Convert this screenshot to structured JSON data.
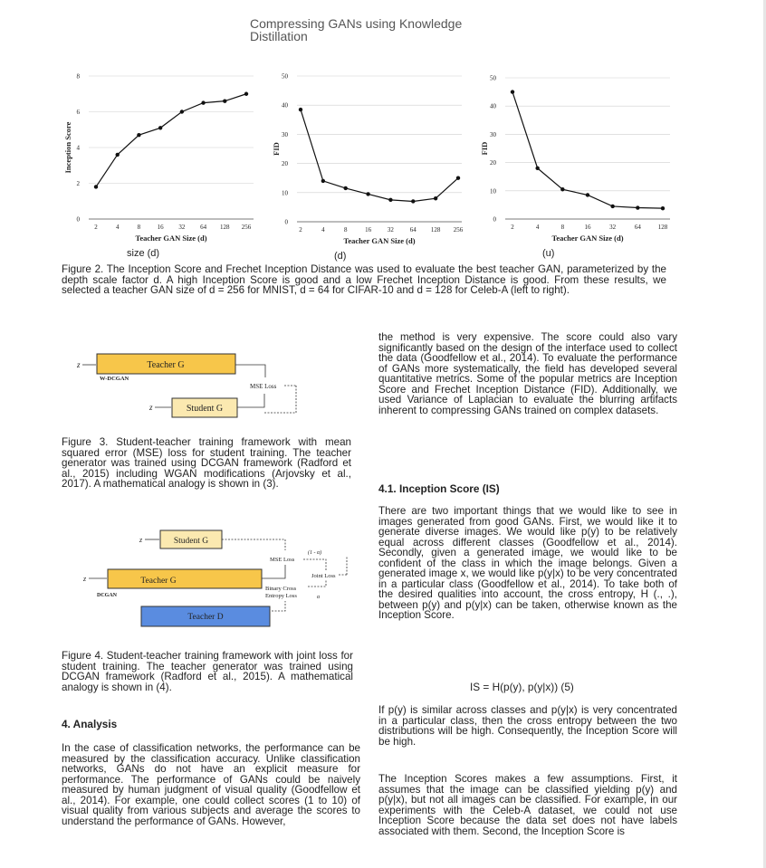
{
  "title": "Compressing GANs using Knowledge Distillation",
  "charts": {
    "sublabel_cut_left": "size (d)",
    "sublabel_middle": "(d)",
    "sublabel_cut_right": "(u)"
  },
  "chart_data": [
    {
      "type": "line",
      "x": [
        2,
        4,
        8,
        16,
        32,
        64,
        128,
        256
      ],
      "values": [
        1.8,
        3.6,
        4.7,
        5.1,
        6.0,
        6.5,
        6.6,
        7.0
      ],
      "xlabel": "Teacher GAN Size (d)",
      "ylabel": "Inception Score",
      "ylim": [
        0,
        8
      ],
      "yticks": [
        0,
        2,
        4,
        6,
        8
      ],
      "xticks": [
        "2",
        "4",
        "8",
        "16",
        "32",
        "64",
        "128",
        "256"
      ],
      "x_scale": "log2",
      "grid": true
    },
    {
      "type": "line",
      "x": [
        2,
        4,
        8,
        16,
        32,
        64,
        128,
        256
      ],
      "values": [
        38.5,
        14.0,
        11.5,
        9.5,
        7.5,
        7.0,
        8.0,
        15.0
      ],
      "xlabel": "Teacher GAN Size (d)",
      "ylabel": "FID",
      "ylim": [
        0,
        50
      ],
      "yticks": [
        0,
        10,
        20,
        30,
        40,
        50
      ],
      "xticks": [
        "2",
        "4",
        "8",
        "16",
        "32",
        "64",
        "128",
        "256"
      ],
      "x_scale": "log2",
      "grid": true
    },
    {
      "type": "line",
      "x": [
        2,
        4,
        8,
        16,
        32,
        64,
        128
      ],
      "values": [
        45.0,
        18.0,
        10.5,
        8.5,
        4.5,
        4.0,
        3.8
      ],
      "xlabel": "Teacher GAN Size (d)",
      "ylabel": "FID",
      "ylim": [
        0,
        50
      ],
      "yticks": [
        0,
        10,
        20,
        30,
        40,
        50
      ],
      "xticks": [
        "2",
        "4",
        "8",
        "16",
        "32",
        "64",
        "128"
      ],
      "x_scale": "log2",
      "grid": true
    }
  ],
  "figure2_caption": "Figure 2. The Inception Score and Frechet Inception Distance was used to evaluate the best teacher GAN, parameterized by the depth scale factor d. A high Inception Score is good and a low Frechet Inception Distance is good. From these results, we selected a teacher GAN size of d = 256 for MNIST, d = 64 for CIFAR-10 and d = 128 for Celeb-A (left to right).",
  "figure3": {
    "z_label": "z",
    "teacher_label": "Teacher G",
    "teacher_sublabel": "W-DCGAN",
    "student_label": "Student G",
    "loss_label": "MSE Loss",
    "caption": "Figure 3. Student-teacher training framework with mean squared error (MSE) loss for student training. The teacher generator was trained using DCGAN framework (Radford et al., 2015) including WGAN modifications (Arjovsky et al., 2017). A mathematical analogy is shown in (3)."
  },
  "figure4": {
    "z_label": "z",
    "student_label": "Student G",
    "teacher_g_label": "Teacher G",
    "teacher_g_sublabel": "DCGAN",
    "teacher_d_label": "Teacher D",
    "mse_label": "MSE Loss",
    "one_minus_alpha": "(1 - α)",
    "joint_loss_label": "Joint Loss",
    "bce_label_line1": "Binary Cross",
    "bce_label_line2": "Entropy Loss",
    "alpha": "α",
    "caption": "Figure 4. Student-teacher training framework with joint loss for student training. The teacher generator was trained using DCGAN framework (Radford et al., 2015). A mathematical analogy is shown in (4)."
  },
  "left_column": {
    "section_heading": "4. Analysis",
    "paragraph": "In the case of classification networks, the performance can be measured by the classification accuracy. Unlike classification networks, GANs do not have an explicit measure for performance. The performance of GANs could be naively measured by human judgment of visual quality (Goodfellow et al., 2014). For example, one could collect scores (1 to 10) of visual quality from various subjects and average the scores to understand the performance of GANs. However,"
  },
  "right_column": {
    "paragraph1": "the method is very expensive. The score could also vary significantly based on the design of the interface used to collect the data (Goodfellow et al., 2014). To evaluate the performance of GANs more systematically, the field has developed several quantitative metrics. Some of the popular metrics are Inception Score and Frechet Inception Distance (FID). Additionally, we used Variance of Laplacian to evaluate the blurring artifacts inherent to compressing GANs trained on complex datasets.",
    "subsection_heading": "4.1. Inception Score (IS)",
    "paragraph2": "There are two important things that we would like to see in images generated from good GANs. First, we would like it to generate diverse images. We would like p(y) to be relatively equal across different classes (Goodfellow et al., 2014). Secondly, given a generated image, we would like to be confident of the class in which the image belongs. Given a generated image x, we would like p(y|x) to be very concentrated in a particular class (Goodfellow et al., 2014). To take both of the desired qualities into account, the cross entropy, H (., .), between p(y) and p(y|x) can be taken, otherwise known as the Inception Score.",
    "equation": "IS = H(p(y), p(y|x)) (5)",
    "paragraph3": "If p(y) is similar across classes and p(y|x) is very concentrated in a particular class, then the cross entropy between the two distributions will be high. Consequently, the Inception Score will be high.",
    "paragraph4": "The Inception Scores makes a few assumptions. First, it assumes that the image can be classified yielding p(y) and p(y|x), but not all images can be classified. For example, in our experiments with the Celeb-A dataset, we could not use Inception Score because the data set does not have labels associated with them. Second, the Inception Score is"
  }
}
